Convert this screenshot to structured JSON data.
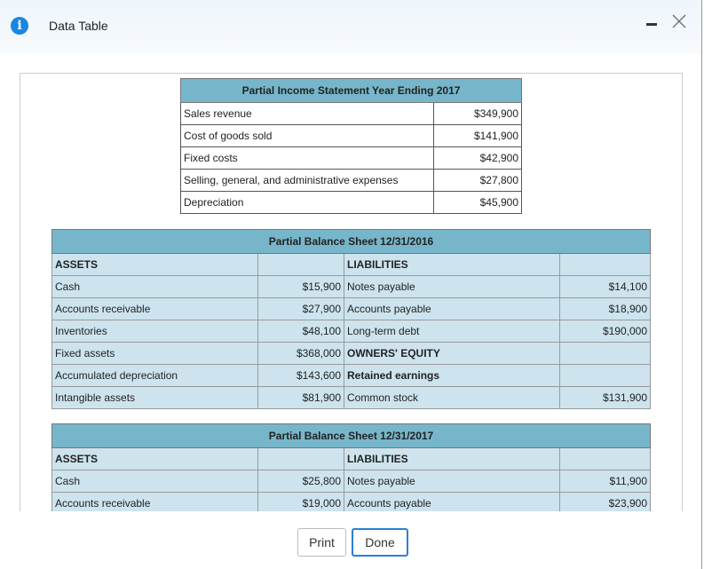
{
  "header": {
    "title": "Data Table"
  },
  "income_statement": {
    "title": "Partial Income Statement Year Ending 2017",
    "rows": [
      [
        "Sales revenue",
        "$349,900"
      ],
      [
        "Cost of goods sold",
        "$141,900"
      ],
      [
        "Fixed costs",
        "$42,900"
      ],
      [
        "Selling, general, and administrative expenses",
        "$27,800"
      ],
      [
        "Depreciation",
        "$45,900"
      ]
    ]
  },
  "balance_sheets": [
    {
      "title": "Partial Balance Sheet 12/31/2016",
      "rows": [
        [
          "ASSETS",
          null,
          "LIABILITIES",
          null
        ],
        [
          "Cash",
          "$15,900",
          "Notes payable",
          "$14,100"
        ],
        [
          "Accounts receivable",
          "$27,900",
          "Accounts payable",
          "$18,900"
        ],
        [
          "Inventories",
          "$48,100",
          "Long-term debt",
          "$190,000"
        ],
        [
          "Fixed assets",
          "$368,000",
          "OWNERS' EQUITY",
          null
        ],
        [
          "Accumulated depreciation",
          "$143,600",
          "Retained earnings",
          null
        ],
        [
          "Intangible assets",
          "$81,900",
          "Common stock",
          "$131,900"
        ]
      ]
    },
    {
      "title": "Partial Balance Sheet 12/31/2017",
      "rows": [
        [
          "ASSETS",
          null,
          "LIABILITIES",
          null
        ],
        [
          "Cash",
          "$25,800",
          "Notes payable",
          "$11,900"
        ],
        [
          "Accounts receivable",
          "$19,000",
          "Accounts payable",
          "$23,900"
        ]
      ]
    }
  ],
  "buttons": [
    "Print",
    "Done"
  ]
}
